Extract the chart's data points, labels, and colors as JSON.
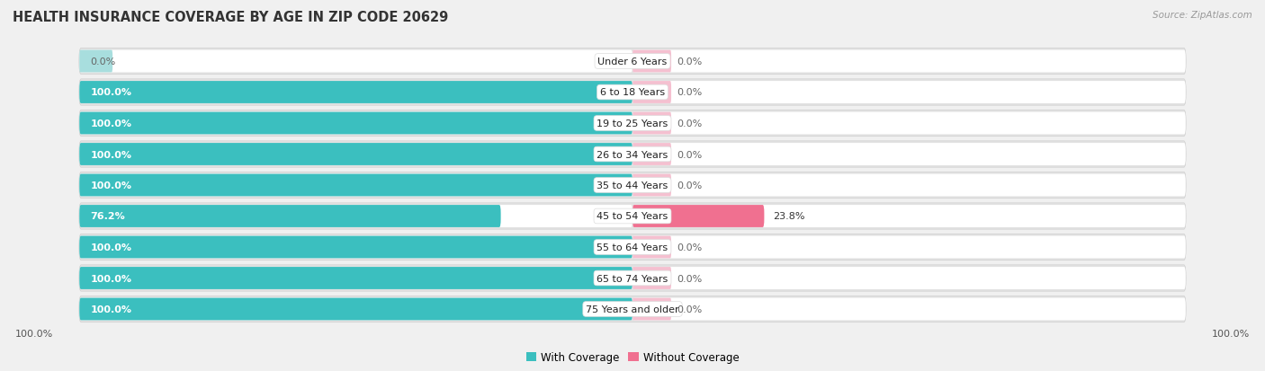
{
  "title": "HEALTH INSURANCE COVERAGE BY AGE IN ZIP CODE 20629",
  "source": "Source: ZipAtlas.com",
  "categories": [
    "Under 6 Years",
    "6 to 18 Years",
    "19 to 25 Years",
    "26 to 34 Years",
    "35 to 44 Years",
    "45 to 54 Years",
    "55 to 64 Years",
    "65 to 74 Years",
    "75 Years and older"
  ],
  "with_coverage": [
    0.0,
    100.0,
    100.0,
    100.0,
    100.0,
    76.2,
    100.0,
    100.0,
    100.0
  ],
  "without_coverage": [
    0.0,
    0.0,
    0.0,
    0.0,
    0.0,
    23.8,
    0.0,
    0.0,
    0.0
  ],
  "color_with": "#3bbfbf",
  "color_without": "#f07090",
  "color_with_light": "#a8dede",
  "color_without_light": "#f5c0d0",
  "row_bg": "#e8e8e8",
  "bar_inner_bg": "#f5f5f5",
  "fig_bg": "#f0f0f0",
  "title_fontsize": 10.5,
  "label_fontsize": 8.0,
  "legend_fontsize": 8.5,
  "value_fontsize": 8.0
}
